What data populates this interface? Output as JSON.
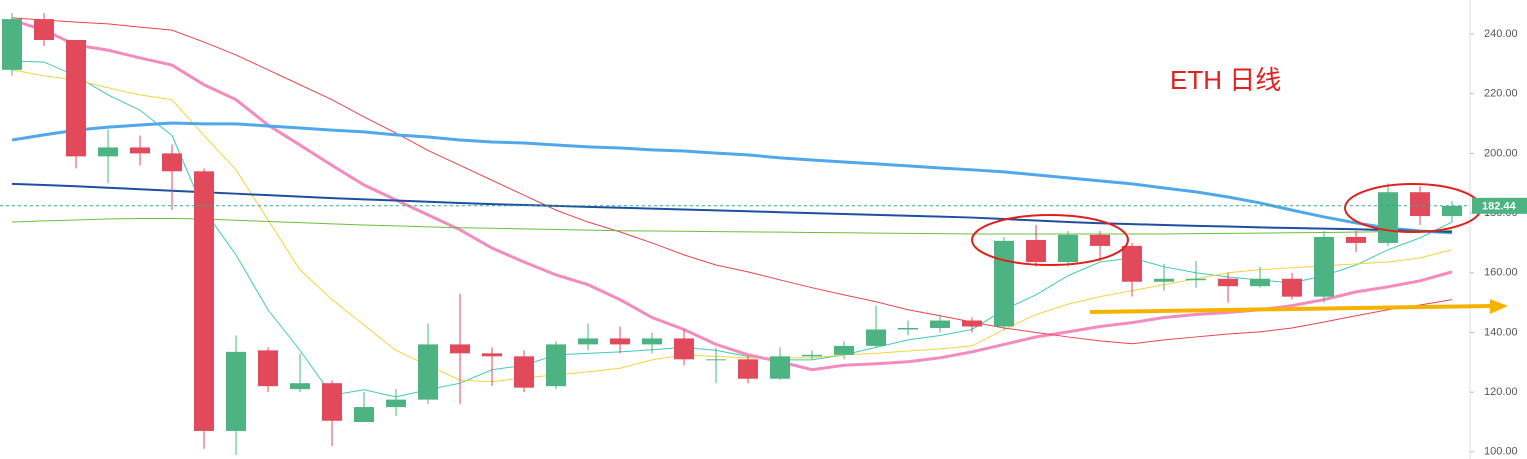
{
  "chart_data": {
    "type": "candlestick",
    "annotation": "ETH 日线",
    "up_color": "#4db382",
    "down_color": "#e04a5a",
    "open": [
      228,
      245,
      238,
      199,
      202,
      200,
      194,
      107,
      134,
      121,
      123,
      110,
      115,
      117.5,
      136,
      133,
      132,
      122,
      136,
      138,
      136,
      138,
      131,
      131,
      124.5,
      132,
      132.5,
      135.5,
      141,
      141.5,
      144,
      142,
      171,
      163.6,
      172.7,
      169,
      157,
      157.5,
      158,
      155.5,
      158,
      152,
      172,
      170,
      187,
      179
    ],
    "high": [
      247,
      247,
      238,
      208,
      206,
      203,
      195,
      139,
      135,
      133,
      124,
      120,
      121,
      143,
      153,
      135,
      134,
      137,
      143,
      142,
      140,
      141,
      135,
      132,
      135,
      134,
      137,
      149,
      144,
      146,
      145,
      172,
      176,
      174,
      174,
      170,
      163,
      164,
      160,
      162,
      160,
      174,
      174,
      190,
      189,
      184
    ],
    "low": [
      226,
      236,
      195,
      190,
      196,
      181,
      101,
      99,
      120,
      120,
      102,
      110,
      112,
      116,
      116,
      122,
      120,
      121,
      134,
      133,
      133,
      129,
      123,
      123,
      124,
      131,
      131,
      135,
      139,
      140,
      140,
      141,
      162,
      162,
      164,
      152,
      154,
      155,
      150,
      155,
      151,
      150,
      167,
      169,
      176,
      177
    ],
    "close": [
      245,
      238,
      199,
      202,
      200,
      194,
      107,
      133.5,
      122,
      123,
      110.4,
      115,
      117.5,
      136,
      133,
      132,
      121.5,
      136,
      138,
      136,
      138,
      131,
      131,
      124.5,
      132,
      132.5,
      135.5,
      141,
      141.5,
      144,
      142,
      170.7,
      163.6,
      172.7,
      169,
      157,
      158,
      158,
      155.5,
      158,
      152,
      172,
      170,
      187,
      179,
      182.4
    ],
    "lines": [
      {
        "color": "#3fc9b8",
        "width": 1,
        "values": [
          231,
          230.6,
          226,
          219.6,
          214.5,
          206,
          181,
          166,
          147.6,
          134,
          119,
          120.8,
          118.4,
          120.8,
          123,
          127.5,
          129,
          132.5,
          133,
          133.5,
          134.2,
          135,
          134,
          132,
          130.8,
          130.8,
          132.5,
          135,
          137.5,
          139,
          141,
          147.6,
          152.6,
          159,
          163.6,
          165,
          162,
          160,
          158.6,
          157.6,
          156.6,
          159,
          162.6,
          167.7,
          171.7,
          177
        ]
      },
      {
        "color": "#f5d33b",
        "width": 1,
        "values": [
          228,
          226,
          224.6,
          222,
          219.6,
          218,
          206,
          194.5,
          177.7,
          161,
          151,
          142.5,
          134,
          129,
          124,
          123.5,
          124.8,
          125.8,
          126.8,
          128,
          130.8,
          132.5,
          132,
          131.5,
          131.5,
          131.5,
          132.5,
          133,
          133.8,
          134.5,
          135.5,
          141,
          146,
          149.5,
          152,
          154,
          156,
          158,
          160,
          161,
          161.7,
          162.3,
          163,
          163.6,
          165,
          167.7
        ]
      },
      {
        "color": "#f48bbf",
        "width": 3,
        "values": [
          244.7,
          241.3,
          236.3,
          234.6,
          232,
          229.6,
          223,
          218,
          209.5,
          202.8,
          196,
          189.4,
          184.4,
          179.4,
          174.4,
          168.3,
          163.6,
          159.3,
          156,
          151,
          145,
          141,
          136,
          132.5,
          130.2,
          127.5,
          129,
          129.5,
          130.2,
          131.5,
          133.5,
          136,
          138.5,
          140.2,
          142,
          143.3,
          145,
          146,
          146.7,
          147.6,
          149,
          151,
          153.6,
          155.3,
          157.3,
          160.3
        ]
      },
      {
        "color": "#e8444f",
        "width": 1,
        "values": [
          245.4,
          244.7,
          244,
          243.4,
          242.3,
          241.3,
          237.3,
          233,
          228,
          223,
          218,
          212.2,
          206.8,
          201,
          196,
          191,
          186,
          181,
          177,
          173.7,
          170,
          166,
          162.6,
          160.3,
          157.6,
          155,
          152.6,
          150.3,
          147.6,
          145.6,
          143.5,
          141.5,
          140,
          138.5,
          137.2,
          136.2,
          137.5,
          138.5,
          139.5,
          140.2,
          141.5,
          143.5,
          145.6,
          147.6,
          149.2,
          151
        ]
      },
      {
        "color": "#4fa8ec",
        "width": 3,
        "values": [
          204.5,
          206.2,
          207.8,
          208.8,
          209.5,
          210.2,
          209.9,
          209.9,
          209.2,
          208.5,
          207.8,
          207.2,
          206.2,
          205.5,
          204.5,
          203.8,
          203.5,
          202.8,
          202.2,
          201.8,
          201.2,
          200.8,
          200.1,
          199.5,
          198.5,
          197.8,
          197.1,
          196.5,
          195.8,
          195.1,
          194.5,
          193.8,
          192.8,
          191.8,
          190.8,
          189.8,
          188.4,
          187.1,
          185.4,
          183.4,
          181,
          178.7,
          176.7,
          175,
          174,
          173.4
        ]
      },
      {
        "color": "#1e4fa0",
        "width": 2,
        "values": [
          189.8,
          189.4,
          189,
          188.5,
          188,
          187.5,
          187,
          186.5,
          186,
          185.5,
          185,
          184.6,
          184.2,
          183.8,
          183.4,
          183,
          182.7,
          182.4,
          182.1,
          181.8,
          181.5,
          181.2,
          180.9,
          180.6,
          180.3,
          180,
          179.7,
          179.4,
          179.1,
          178.8,
          178.5,
          178,
          177.5,
          177,
          176.6,
          176.3,
          176,
          175.7,
          175.5,
          175.2,
          175,
          174.8,
          174.6,
          174.3,
          174,
          173.7
        ]
      },
      {
        "color": "#6abf3a",
        "width": 1,
        "values": [
          177,
          177.4,
          177.7,
          178,
          178.2,
          178.2,
          178,
          177.6,
          177.2,
          176.8,
          176.4,
          176,
          175.7,
          175.4,
          175.1,
          174.9,
          174.7,
          174.5,
          174.3,
          174.1,
          174,
          173.9,
          173.8,
          173.7,
          173.6,
          173.5,
          173.4,
          173.3,
          173.2,
          173.1,
          173,
          173,
          173,
          173,
          173,
          173,
          173,
          173.1,
          173.2,
          173.3,
          173.4,
          173.5,
          173.6,
          173.8,
          174,
          174.2
        ]
      }
    ],
    "price_line": {
      "value": 182.44,
      "color": "#3aa88a"
    },
    "ylim": [
      97.6,
      251.4
    ],
    "yticks": [
      {
        "value": 100,
        "label": "100.00"
      },
      {
        "value": 120,
        "label": "120.00"
      },
      {
        "value": 140,
        "label": "140.00"
      },
      {
        "value": 160,
        "label": "160.00"
      },
      {
        "value": 180,
        "label": "180.00"
      },
      {
        "value": 200,
        "label": "200.00"
      },
      {
        "value": 220,
        "label": "220.00"
      },
      {
        "value": 240,
        "label": "240.00"
      }
    ]
  }
}
